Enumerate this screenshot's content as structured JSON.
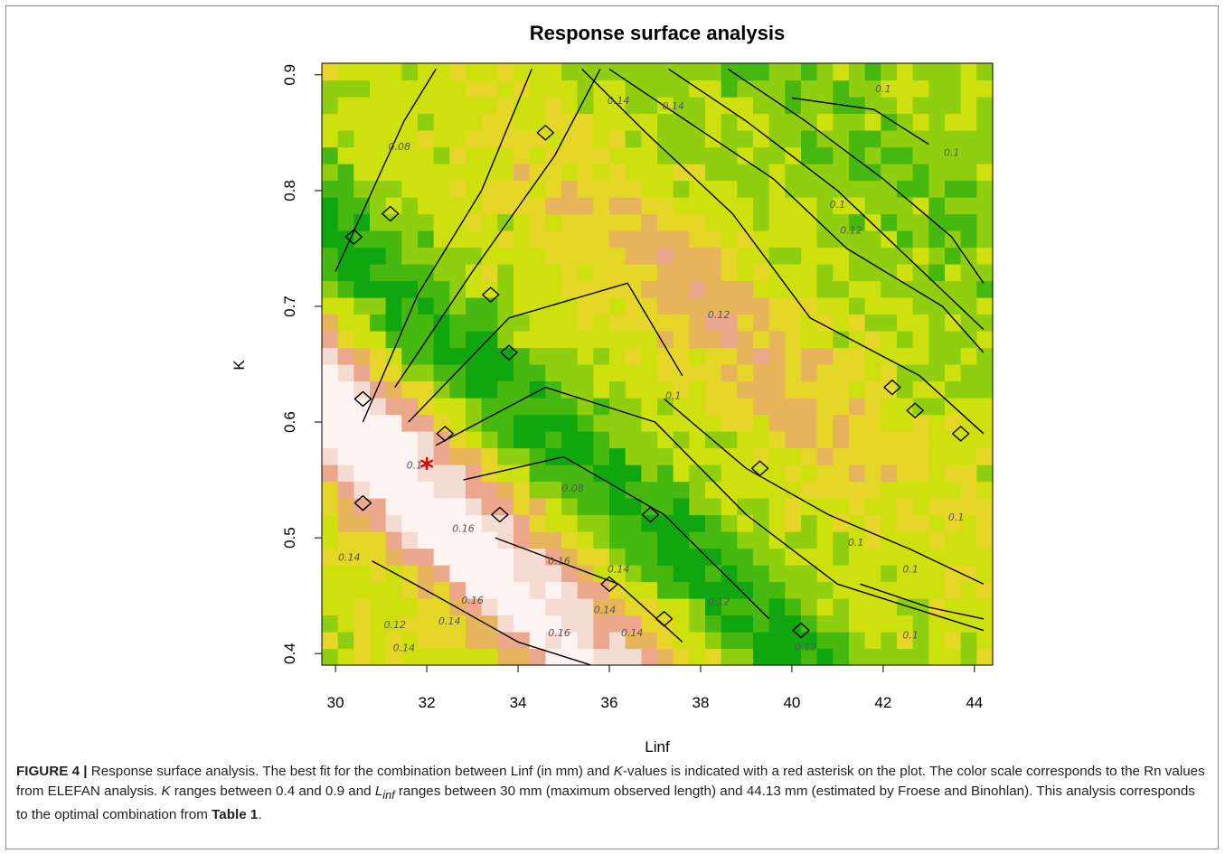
{
  "chart_data": {
    "type": "heatmap",
    "title": "Response surface analysis",
    "xlabel": "Linf",
    "ylabel": "K",
    "xlim": [
      29.7,
      44.4
    ],
    "ylim": [
      0.39,
      0.91
    ],
    "xticks": [
      "30",
      "32",
      "34",
      "36",
      "38",
      "40",
      "42",
      "44"
    ],
    "yticks": [
      "0.4",
      "0.5",
      "0.6",
      "0.7",
      "0.8",
      "0.9"
    ],
    "colormap": [
      "#0fa60f",
      "#46b80f",
      "#8fcf0f",
      "#cfe00f",
      "#e6d628",
      "#e6b45a",
      "#eba88c",
      "#f5dcd2",
      "#fdf3f0"
    ],
    "value_range": [
      0.05,
      0.19
    ],
    "best_fit": {
      "Linf": 32.0,
      "K": 0.56,
      "marker": "*",
      "color": "#e00000"
    },
    "contour_labels": [
      {
        "text": "0.1",
        "Linf": 42.0,
        "K": 0.885
      },
      {
        "text": "0.14",
        "Linf": 36.2,
        "K": 0.875
      },
      {
        "text": "0.14",
        "Linf": 37.4,
        "K": 0.87
      },
      {
        "text": "0.08",
        "Linf": 31.4,
        "K": 0.835
      },
      {
        "text": "0.1",
        "Linf": 43.5,
        "K": 0.83
      },
      {
        "text": "0.1",
        "Linf": 41.0,
        "K": 0.785
      },
      {
        "text": "0.12",
        "Linf": 41.3,
        "K": 0.763
      },
      {
        "text": "0.12",
        "Linf": 38.4,
        "K": 0.69
      },
      {
        "text": "0.1",
        "Linf": 37.4,
        "K": 0.62
      },
      {
        "text": "0.14",
        "Linf": 31.8,
        "K": 0.56
      },
      {
        "text": "0.08",
        "Linf": 35.2,
        "K": 0.54
      },
      {
        "text": "0.16",
        "Linf": 32.8,
        "K": 0.505
      },
      {
        "text": "0.14",
        "Linf": 30.3,
        "K": 0.48
      },
      {
        "text": "0.16",
        "Linf": 34.9,
        "K": 0.477
      },
      {
        "text": "0.14",
        "Linf": 36.2,
        "K": 0.47
      },
      {
        "text": "0.1",
        "Linf": 43.6,
        "K": 0.515
      },
      {
        "text": "0.1",
        "Linf": 41.4,
        "K": 0.493
      },
      {
        "text": "0.1",
        "Linf": 42.6,
        "K": 0.47
      },
      {
        "text": "0.16",
        "Linf": 33.0,
        "K": 0.443
      },
      {
        "text": "0.12",
        "Linf": 38.4,
        "K": 0.442
      },
      {
        "text": "0.14",
        "Linf": 35.9,
        "K": 0.435
      },
      {
        "text": "0.14",
        "Linf": 32.5,
        "K": 0.425
      },
      {
        "text": "0.12",
        "Linf": 31.3,
        "K": 0.422
      },
      {
        "text": "0.16",
        "Linf": 34.9,
        "K": 0.415
      },
      {
        "text": "0.14",
        "Linf": 36.5,
        "K": 0.415
      },
      {
        "text": "0.1",
        "Linf": 42.6,
        "K": 0.413
      },
      {
        "text": "0.14",
        "Linf": 31.5,
        "K": 0.402
      },
      {
        "text": "0.12",
        "Linf": 40.3,
        "K": 0.403
      }
    ]
  },
  "caption": {
    "figure_label": "FIGURE 4 |",
    "text_1": " Response surface analysis. The best fit for the combination between Linf (in mm) and ",
    "k_italic_1": "K",
    "text_2": "-values is indicated with a red asterisk on the plot. The color scale corresponds to the Rn values from ELEFAN analysis. ",
    "k_italic_2": "K",
    "text_3": " ranges between 0.4 and 0.9 and ",
    "linf_main": "L",
    "linf_sub": "inf",
    "text_4": " ranges between 30 mm (maximum observed length) and 44.13 mm (estimated by Froese and Binohlan). This analysis corresponds to the optimal combination from ",
    "table_ref": "Table 1",
    "text_5": "."
  }
}
